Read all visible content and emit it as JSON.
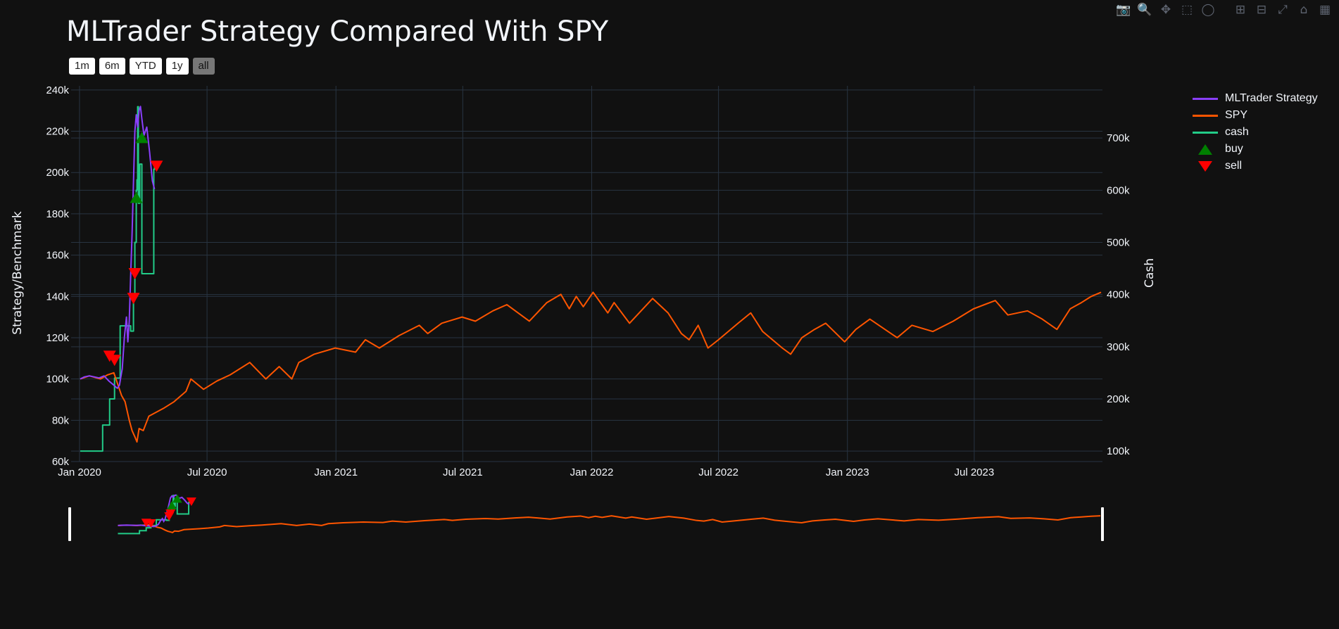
{
  "toolbar": {
    "icons": [
      "camera-icon",
      "zoom-icon",
      "pan-icon",
      "box-select-icon",
      "lasso-select-icon",
      "zoom-in-icon",
      "zoom-out-icon",
      "autoscale-icon",
      "reset-axes-icon",
      "plotly-logo-icon"
    ]
  },
  "range_buttons": [
    {
      "label": "1m",
      "active": false
    },
    {
      "label": "6m",
      "active": false
    },
    {
      "label": "YTD",
      "active": false
    },
    {
      "label": "1y",
      "active": false
    },
    {
      "label": "all",
      "active": true
    }
  ],
  "legend": [
    {
      "label": "MLTrader Strategy",
      "kind": "line",
      "color": "#8a3ffc"
    },
    {
      "label": "SPY",
      "kind": "line",
      "color": "#ff5500"
    },
    {
      "label": "cash",
      "kind": "line",
      "color": "#22cc88"
    },
    {
      "label": "buy",
      "kind": "up",
      "color": "#008000"
    },
    {
      "label": "sell",
      "kind": "down",
      "color": "#ff0000"
    }
  ],
  "chart_data": {
    "type": "line",
    "title": "MLTrader Strategy Compared With SPY",
    "ylabel": "Strategy/Benchmark",
    "y2label": "Cash",
    "x_ticks": [
      "Jan 2020",
      "Jul 2020",
      "Jan 2021",
      "Jul 2021",
      "Jan 2022",
      "Jul 2022",
      "Jan 2023",
      "Jul 2023"
    ],
    "y_ticks": [
      "60k",
      "80k",
      "100k",
      "120k",
      "140k",
      "160k",
      "180k",
      "200k",
      "220k",
      "240k"
    ],
    "y2_ticks": [
      "100k",
      "200k",
      "300k",
      "400k",
      "500k",
      "600k",
      "700k"
    ],
    "xlim": [
      "2019-12-20",
      "2023-12-31"
    ],
    "ylim": [
      60000,
      242000
    ],
    "y2lim": [
      80000,
      800000
    ],
    "grid": true,
    "legend_position": "top-right",
    "series": [
      {
        "name": "MLTrader Strategy",
        "color": "#8a3ffc",
        "axis": "y",
        "points": [
          [
            "2020-01-02",
            100000
          ],
          [
            "2020-01-08",
            101000
          ],
          [
            "2020-01-15",
            101500
          ],
          [
            "2020-01-22",
            101000
          ],
          [
            "2020-01-29",
            100500
          ],
          [
            "2020-02-05",
            101500
          ],
          [
            "2020-02-12",
            99000
          ],
          [
            "2020-02-19",
            97000
          ],
          [
            "2020-02-24",
            95500
          ],
          [
            "2020-02-27",
            97000
          ],
          [
            "2020-03-02",
            105000
          ],
          [
            "2020-03-05",
            120000
          ],
          [
            "2020-03-08",
            130000
          ],
          [
            "2020-03-10",
            118000
          ],
          [
            "2020-03-12",
            128000
          ],
          [
            "2020-03-14",
            150000
          ],
          [
            "2020-03-16",
            170000
          ],
          [
            "2020-03-18",
            195000
          ],
          [
            "2020-03-20",
            220000
          ],
          [
            "2020-03-22",
            228000
          ],
          [
            "2020-03-24",
            222000
          ],
          [
            "2020-03-26",
            230000
          ],
          [
            "2020-03-28",
            232000
          ],
          [
            "2020-03-30",
            226000
          ],
          [
            "2020-04-02",
            218000
          ],
          [
            "2020-04-06",
            222000
          ],
          [
            "2020-04-10",
            210000
          ],
          [
            "2020-04-14",
            196000
          ],
          [
            "2020-04-17",
            192000
          ]
        ]
      },
      {
        "name": "SPY",
        "color": "#ff5500",
        "axis": "y",
        "points": [
          [
            "2020-01-02",
            100000
          ],
          [
            "2020-01-15",
            101500
          ],
          [
            "2020-01-31",
            100000
          ],
          [
            "2020-02-10",
            102000
          ],
          [
            "2020-02-19",
            103000
          ],
          [
            "2020-02-25",
            97000
          ],
          [
            "2020-03-01",
            92000
          ],
          [
            "2020-03-06",
            89000
          ],
          [
            "2020-03-12",
            80000
          ],
          [
            "2020-03-16",
            75000
          ],
          [
            "2020-03-20",
            72000
          ],
          [
            "2020-03-23",
            69500
          ],
          [
            "2020-03-26",
            76000
          ],
          [
            "2020-04-01",
            75000
          ],
          [
            "2020-04-09",
            82000
          ],
          [
            "2020-04-20",
            84000
          ],
          [
            "2020-05-01",
            86000
          ],
          [
            "2020-05-15",
            89000
          ],
          [
            "2020-06-01",
            94000
          ],
          [
            "2020-06-08",
            100000
          ],
          [
            "2020-06-26",
            95000
          ],
          [
            "2020-07-15",
            99000
          ],
          [
            "2020-08-03",
            102000
          ],
          [
            "2020-08-31",
            108000
          ],
          [
            "2020-09-23",
            100000
          ],
          [
            "2020-10-12",
            106000
          ],
          [
            "2020-10-30",
            100000
          ],
          [
            "2020-11-09",
            108000
          ],
          [
            "2020-12-01",
            112000
          ],
          [
            "2020-12-31",
            115000
          ],
          [
            "2021-01-29",
            113000
          ],
          [
            "2021-02-12",
            119000
          ],
          [
            "2021-03-04",
            115000
          ],
          [
            "2021-04-01",
            121000
          ],
          [
            "2021-04-30",
            126000
          ],
          [
            "2021-05-12",
            122000
          ],
          [
            "2021-06-01",
            127000
          ],
          [
            "2021-06-30",
            130000
          ],
          [
            "2021-07-19",
            128000
          ],
          [
            "2021-08-13",
            133000
          ],
          [
            "2021-09-02",
            136000
          ],
          [
            "2021-10-04",
            128000
          ],
          [
            "2021-10-29",
            137000
          ],
          [
            "2021-11-18",
            141000
          ],
          [
            "2021-11-30",
            134000
          ],
          [
            "2021-12-10",
            140000
          ],
          [
            "2021-12-20",
            135000
          ],
          [
            "2022-01-03",
            142000
          ],
          [
            "2022-01-24",
            132000
          ],
          [
            "2022-02-02",
            137000
          ],
          [
            "2022-02-24",
            127000
          ],
          [
            "2022-03-29",
            139000
          ],
          [
            "2022-04-20",
            132000
          ],
          [
            "2022-05-09",
            122000
          ],
          [
            "2022-05-20",
            119000
          ],
          [
            "2022-06-02",
            126000
          ],
          [
            "2022-06-16",
            115000
          ],
          [
            "2022-07-01",
            119000
          ],
          [
            "2022-07-29",
            127000
          ],
          [
            "2022-08-16",
            132000
          ],
          [
            "2022-09-02",
            123000
          ],
          [
            "2022-09-30",
            115000
          ],
          [
            "2022-10-12",
            112000
          ],
          [
            "2022-10-28",
            120000
          ],
          [
            "2022-11-15",
            124000
          ],
          [
            "2022-12-01",
            127000
          ],
          [
            "2022-12-28",
            118000
          ],
          [
            "2023-01-13",
            124000
          ],
          [
            "2023-02-02",
            129000
          ],
          [
            "2023-03-13",
            120000
          ],
          [
            "2023-04-03",
            126000
          ],
          [
            "2023-05-03",
            123000
          ],
          [
            "2023-06-01",
            128000
          ],
          [
            "2023-06-30",
            134000
          ],
          [
            "2023-07-31",
            138000
          ],
          [
            "2023-08-18",
            131000
          ],
          [
            "2023-09-15",
            133000
          ],
          [
            "2023-10-06",
            129000
          ],
          [
            "2023-10-27",
            124000
          ],
          [
            "2023-11-15",
            134000
          ],
          [
            "2023-12-01",
            137000
          ],
          [
            "2023-12-15",
            140000
          ],
          [
            "2023-12-29",
            142000
          ]
        ]
      },
      {
        "name": "cash",
        "color": "#22cc88",
        "axis": "y2",
        "shape": "hv",
        "points": [
          [
            "2020-01-02",
            100000
          ],
          [
            "2020-02-03",
            150000
          ],
          [
            "2020-02-13",
            200000
          ],
          [
            "2020-02-20",
            240000
          ],
          [
            "2020-02-28",
            340000
          ],
          [
            "2020-03-14",
            330000
          ],
          [
            "2020-03-18",
            400000
          ],
          [
            "2020-03-20",
            500000
          ],
          [
            "2020-03-22",
            600000
          ],
          [
            "2020-03-23",
            620000
          ],
          [
            "2020-03-24",
            760000
          ],
          [
            "2020-03-25",
            575000
          ],
          [
            "2020-03-27",
            650000
          ],
          [
            "2020-03-30",
            440000
          ],
          [
            "2020-04-15",
            440000
          ],
          [
            "2020-04-16",
            640000
          ],
          [
            "2020-04-17",
            655000
          ]
        ]
      },
      {
        "name": "buy",
        "color": "#008000",
        "axis": "y",
        "marker": "triangle-up",
        "points": [
          [
            "2020-03-22",
            188000
          ],
          [
            "2020-03-30",
            217000
          ]
        ]
      },
      {
        "name": "sell",
        "color": "#ff0000",
        "axis": "y",
        "marker": "triangle-down",
        "points": [
          [
            "2020-02-13",
            111000
          ],
          [
            "2020-02-20",
            109000
          ],
          [
            "2020-03-18",
            139000
          ],
          [
            "2020-03-20",
            151000
          ],
          [
            "2020-04-20",
            203000
          ]
        ]
      }
    ]
  }
}
